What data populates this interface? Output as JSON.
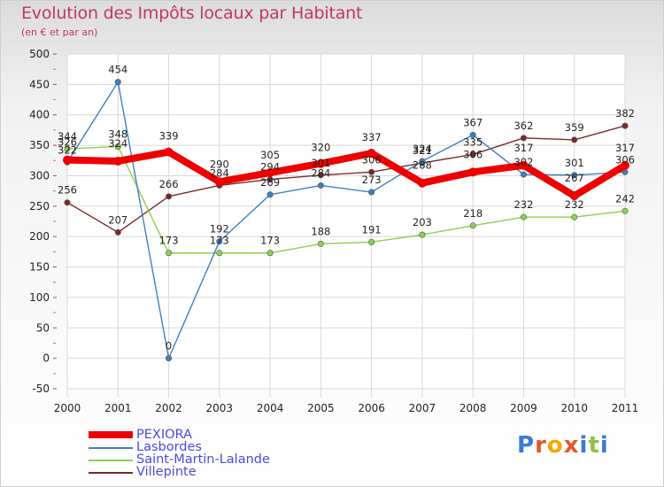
{
  "header": {
    "title": "Evolution des Impôts locaux par Habitant",
    "subtitle": "(en € et par an)"
  },
  "logo": {
    "text": "Proxiti",
    "letter_colors": [
      "#3a7bd5",
      "#e8562a",
      "#f2a900",
      "#e8562a",
      "#3a7bd5",
      "#8bc34a",
      "#3a7bd5"
    ]
  },
  "chart_data": {
    "type": "line",
    "title": "Evolution des Impôts locaux par Habitant",
    "subtitle": "(en € et par an)",
    "x": [
      "2000",
      "2001",
      "2002",
      "2003",
      "2004",
      "2005",
      "2006",
      "2007",
      "2008",
      "2009",
      "2010",
      "2011"
    ],
    "ylim": [
      -50,
      500
    ],
    "yticks": [
      -50,
      0,
      50,
      100,
      150,
      200,
      250,
      300,
      350,
      400,
      450,
      500
    ],
    "grid": true,
    "legend_position": "bottom-left",
    "series": [
      {
        "name": "PEXIORA",
        "color": "#ee0000",
        "values": [
          326,
          324,
          339,
          290,
          305,
          320,
          337,
          288,
          306,
          317,
          267,
          317
        ],
        "labels": [
          "326",
          "324",
          "339",
          "290",
          "305",
          "320",
          "337",
          "288",
          "306",
          "317",
          "267",
          "317"
        ],
        "label_offsets_dy": [
          -16,
          -16,
          -14,
          -16,
          -16,
          -14,
          -14,
          -16,
          -16,
          -16,
          -16,
          -16
        ]
      },
      {
        "name": "Lasbordes",
        "color": "#3f7fbf",
        "values": [
          322,
          454,
          0,
          192,
          269,
          284,
          273,
          324,
          367,
          302,
          301,
          306
        ],
        "labels": [
          "322",
          "454",
          "0",
          "192",
          "269",
          "284",
          "273",
          "324",
          "367",
          "302",
          "301",
          "306"
        ]
      },
      {
        "name": "Saint-Martin-Lalande",
        "color": "#8ed04f",
        "values": [
          344,
          348,
          173,
          173,
          173,
          188,
          191,
          203,
          218,
          232,
          232,
          242
        ],
        "labels": [
          "344",
          "348",
          "173",
          "173",
          "173",
          "188",
          "191",
          "203",
          "218",
          "232",
          "232",
          "242"
        ]
      },
      {
        "name": "Villepinte",
        "color": "#7a2a2a",
        "values": [
          256,
          207,
          266,
          284,
          294,
          301,
          306,
          321,
          335,
          362,
          359,
          382
        ],
        "labels": [
          "256",
          "207",
          "266",
          "284",
          "294",
          "301",
          "306",
          "321",
          "335",
          "362",
          "359",
          "382"
        ]
      }
    ]
  }
}
